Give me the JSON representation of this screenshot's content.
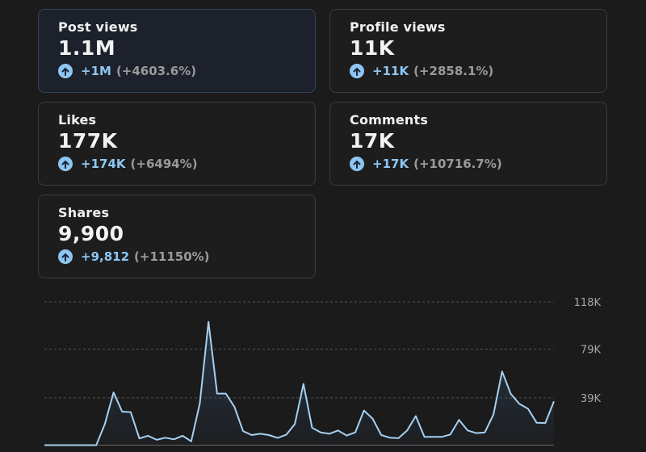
{
  "cards": [
    {
      "label": "Post views",
      "value": "1.1M",
      "delta": "+1M",
      "pct": "(+4603.6%)"
    },
    {
      "label": "Profile views",
      "value": "11K",
      "delta": "+11K",
      "pct": "(+2858.1%)"
    },
    {
      "label": "Likes",
      "value": "177K",
      "delta": "+174K",
      "pct": "(+6494%)"
    },
    {
      "label": "Comments",
      "value": "17K",
      "delta": "+17K",
      "pct": "(+10716.7%)"
    },
    {
      "label": "Shares",
      "value": "9,900",
      "delta": "+9,812",
      "pct": "(+11150%)"
    }
  ],
  "colors": {
    "accent": "#8ec6f3",
    "background": "#1b1b1b"
  },
  "chart_data": {
    "type": "area",
    "yticks": [
      {
        "value": 39,
        "label": "39K"
      },
      {
        "value": 79,
        "label": "79K"
      },
      {
        "value": 118,
        "label": "118K"
      }
    ],
    "ylim": [
      0,
      118
    ],
    "values": [
      0,
      0,
      0,
      0,
      0,
      0,
      0,
      17.5,
      43.4,
      27.6,
      27.2,
      5.5,
      7.7,
      4.4,
      6.1,
      4.8,
      7.7,
      3.1,
      34.6,
      101.5,
      42.5,
      42.5,
      31.6,
      11.6,
      8.3,
      9.4,
      8.3,
      5.9,
      8.6,
      17.5,
      50.4,
      14.3,
      10.5,
      9.4,
      12.1,
      7.9,
      10.5,
      28.5,
      21.9,
      8.3,
      6.1,
      5.7,
      12.1,
      23.9,
      6.8,
      6.8,
      6.8,
      8.8,
      20.8,
      12.1,
      9.9,
      10.5,
      25.2,
      60.7,
      42.3,
      34,
      30,
      18.4,
      18.2,
      36
    ]
  }
}
